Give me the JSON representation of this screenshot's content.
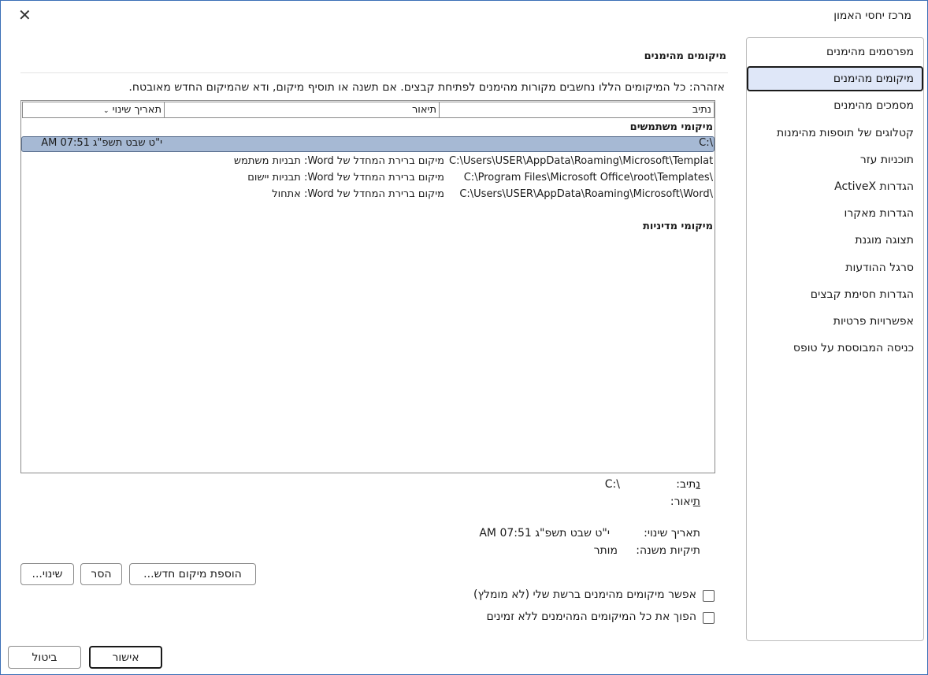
{
  "window": {
    "title": "מרכז יחסי האמון",
    "close_icon": "close-icon"
  },
  "sidebar": {
    "selected_index": 1,
    "items": [
      {
        "label": "מפרסמים מהימנים"
      },
      {
        "label": "מיקומים מהימנים"
      },
      {
        "label": "מסמכים מהימנים"
      },
      {
        "label": "קטלוגים של תוספות מהימנות"
      },
      {
        "label": "תוכניות עזר"
      },
      {
        "label": "הגדרות ActiveX"
      },
      {
        "label": "הגדרות מאקרו"
      },
      {
        "label": "תצוגה מוגנת"
      },
      {
        "label": "סרגל ההודעות"
      },
      {
        "label": "הגדרות חסימת קבצים"
      },
      {
        "label": "אפשרויות פרטיות"
      },
      {
        "label": "כניסה המבוססת על טופס"
      }
    ]
  },
  "main": {
    "title": "מיקומים מהימנים",
    "warning": "אזהרה: כל המיקומים הללו נחשבים מקורות מהימנים לפתיחת קבצים. אם תשנה או תוסיף מיקום, ודא שהמיקום החדש מאובטח.",
    "table": {
      "headers": {
        "path": "נתיב",
        "description": "תיאור",
        "date": "תאריך שינוי",
        "sort_icon": "chevron-down-icon"
      },
      "user_group": "מיקומי משתמשים",
      "rows": [
        {
          "path": "C:\\",
          "description": "",
          "date": "י\"ט שבט תשפ\"ג 07:51 AM",
          "selected": true
        },
        {
          "path": "C:\\Users\\USER\\AppData\\Roaming\\Microsoft\\Templates\\",
          "description": "מיקום ברירת המחדל של Word: תבניות משתמש",
          "date": ""
        },
        {
          "path": "C:\\Program Files\\Microsoft Office\\root\\Templates\\",
          "description": "מיקום ברירת המחדל של Word: תבניות יישום",
          "date": ""
        },
        {
          "path": "C:\\Users\\USER\\AppData\\Roaming\\Microsoft\\Word\\",
          "description": "מיקום ברירת המחדל של Word: אתחול",
          "date": ""
        }
      ],
      "policy_group": "מיקומי מדיניות"
    },
    "details": {
      "path_label": "נתיב:",
      "path_value": "C:\\",
      "description_label": "תיאור:",
      "date_label": "תאריך שינוי:",
      "date_value": "י\"ט שבט תשפ\"ג 07:51 AM",
      "subfolders_label": "תיקיות משנה:",
      "subfolders_value": "מותר"
    },
    "buttons": {
      "add": "הוספת מיקום חדש...",
      "remove": "הסר",
      "modify": "שינוי..."
    },
    "checkboxes": [
      {
        "label": "אפשר מיקומים מהימנים ברשת שלי (לא מומלץ)",
        "checked": false
      },
      {
        "label": "הפוך את כל המיקומים המהימנים ללא זמינים",
        "checked": false
      }
    ]
  },
  "footer": {
    "ok": "אישור",
    "cancel": "ביטול"
  }
}
